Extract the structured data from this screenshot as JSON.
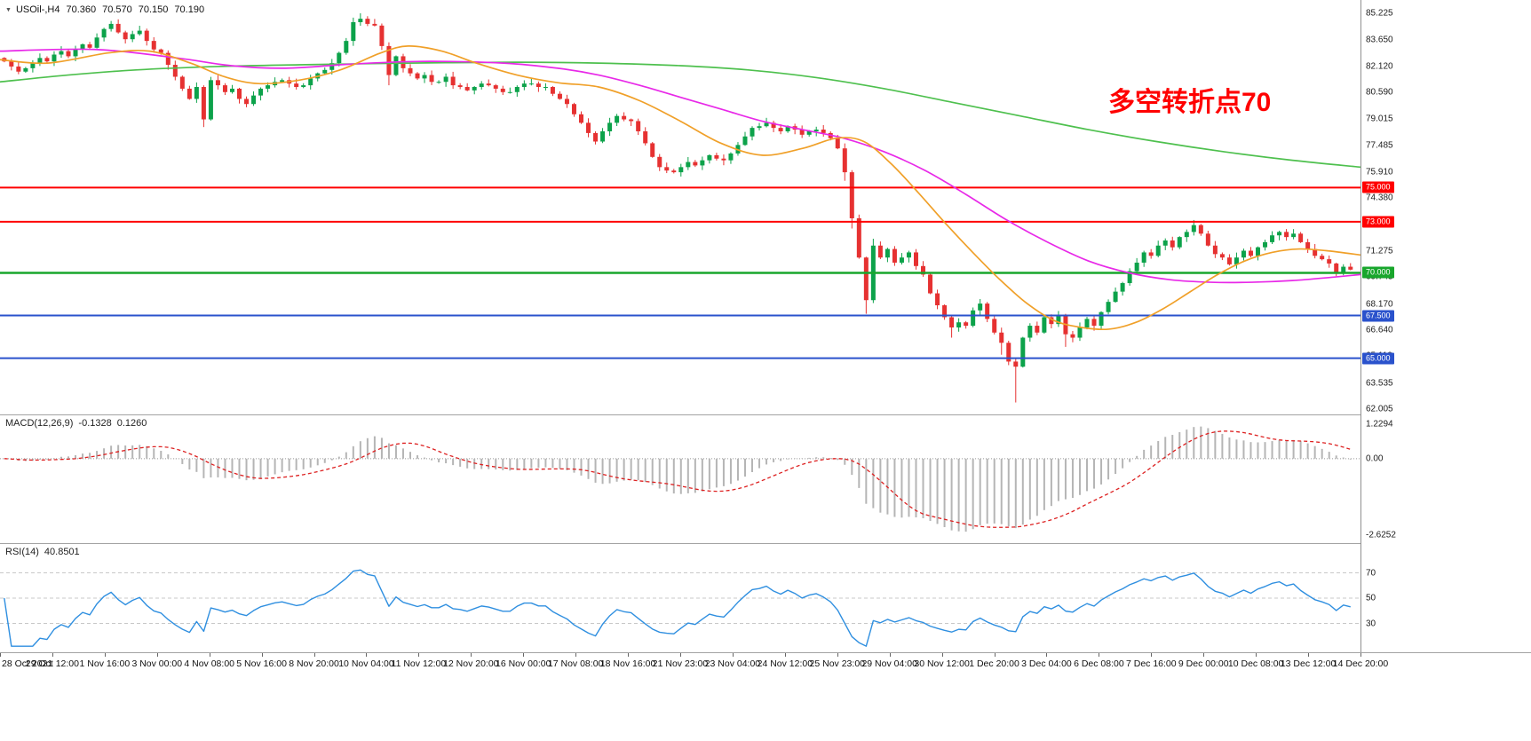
{
  "header": {
    "symbol_period": "USOil-,H4",
    "open": "70.360",
    "high": "70.570",
    "low": "70.150",
    "close": "70.190"
  },
  "annotation": {
    "text": "多空转折点70",
    "color": "#ff0000"
  },
  "colors": {
    "up": "#0ca24a",
    "down": "#e63131",
    "ma_green": "#4ec04e",
    "ma_magenta": "#e829e8",
    "ma_orange": "#f0a029",
    "separator": "#a3a3a3",
    "axis_text": "#1c1c1c"
  },
  "price_axis": {
    "labels": [
      "85.225",
      "83.650",
      "82.120",
      "80.590",
      "79.015",
      "77.485",
      "75.910",
      "74.380",
      "72.850",
      "71.275",
      "69.745",
      "68.170",
      "66.640",
      "65.110",
      "63.535",
      "62.005"
    ]
  },
  "hlines": [
    {
      "price": 75.0,
      "label": "75.000",
      "color": "#ff0000"
    },
    {
      "price": 73.0,
      "label": "73.000",
      "color": "#ff0000"
    },
    {
      "price": 70.0,
      "label": "70.000",
      "color": "#18a62c"
    },
    {
      "price": 67.5,
      "label": "67.500",
      "color": "#2a52cc"
    },
    {
      "price": 65.0,
      "label": "65.000",
      "color": "#2a52cc"
    }
  ],
  "time_axis": {
    "labels": [
      "28 Oct 2021",
      "29 Oct 12:00",
      "1 Nov 16:00",
      "3 Nov 00:00",
      "4 Nov 08:00",
      "5 Nov 16:00",
      "8 Nov 20:00",
      "10 Nov 04:00",
      "11 Nov 12:00",
      "12 Nov 20:00",
      "16 Nov 00:00",
      "17 Nov 08:00",
      "18 Nov 16:00",
      "21 Nov 23:00",
      "23 Nov 04:00",
      "24 Nov 12:00",
      "25 Nov 23:00",
      "29 Nov 04:00",
      "30 Nov 12:00",
      "1 Dec 20:00",
      "3 Dec 04:00",
      "6 Dec 08:00",
      "7 Dec 16:00",
      "9 Dec 00:00",
      "10 Dec 08:00",
      "13 Dec 12:00",
      "14 Dec 20:00"
    ]
  },
  "macd": {
    "name": "MACD(12,26,9)",
    "value_main": "-0.1328",
    "value_signal": "0.1260",
    "axis_max": "1.2294",
    "axis_zero": "0.00",
    "axis_min": "-2.6252",
    "histogram_color": "#b5b5b5",
    "signal_color": "#dd2020"
  },
  "rsi": {
    "name": "RSI(14)",
    "value": "40.8501",
    "levels": [
      70,
      50,
      30
    ],
    "line_color": "#2f8fe0"
  },
  "chart_data": [
    {
      "type": "candlestick",
      "symbol": "USOil",
      "timeframe": "H4",
      "title": "USOil-,H4 70.360 70.570 70.150 70.190",
      "ylim": [
        61.7,
        86.0
      ],
      "first_open": 82.6,
      "closes": [
        82.4,
        82.1,
        81.8,
        82.0,
        82.3,
        82.6,
        82.4,
        82.8,
        83.0,
        82.7,
        83.1,
        83.4,
        83.2,
        83.8,
        84.3,
        84.6,
        84.1,
        83.7,
        84.0,
        84.2,
        83.6,
        83.1,
        82.9,
        82.2,
        81.5,
        80.8,
        80.2,
        80.9,
        79.0,
        81.3,
        81.0,
        80.6,
        80.8,
        80.2,
        79.9,
        80.4,
        80.8,
        81.0,
        81.2,
        81.3,
        81.1,
        80.9,
        81.0,
        81.4,
        81.7,
        81.9,
        82.3,
        82.9,
        83.6,
        84.7,
        84.9,
        84.6,
        84.5,
        83.3,
        81.6,
        82.7,
        82.0,
        81.7,
        81.4,
        81.6,
        81.2,
        81.2,
        81.5,
        81.0,
        80.9,
        80.7,
        80.9,
        81.1,
        81.0,
        80.8,
        80.6,
        80.6,
        80.9,
        81.1,
        81.1,
        80.9,
        80.9,
        80.5,
        80.2,
        79.9,
        79.3,
        78.8,
        78.2,
        77.7,
        78.3,
        78.8,
        79.2,
        79.0,
        78.9,
        78.3,
        77.6,
        76.8,
        76.2,
        76.0,
        75.9,
        76.2,
        76.5,
        76.3,
        76.6,
        76.9,
        76.7,
        76.6,
        77.0,
        77.5,
        78.0,
        78.5,
        78.6,
        78.8,
        78.5,
        78.3,
        78.6,
        78.4,
        78.1,
        78.3,
        78.4,
        78.2,
        77.9,
        77.3,
        75.9,
        73.2,
        70.9,
        68.4,
        71.6,
        70.9,
        71.4,
        70.6,
        70.9,
        71.2,
        70.4,
        69.9,
        68.8,
        68.1,
        67.4,
        66.8,
        67.1,
        66.9,
        67.8,
        68.2,
        67.3,
        66.5,
        65.9,
        64.8,
        64.5,
        66.2,
        66.9,
        66.5,
        67.4,
        67.0,
        67.5,
        66.4,
        66.2,
        66.8,
        67.3,
        66.9,
        67.7,
        68.3,
        68.9,
        69.4,
        70.1,
        70.6,
        71.2,
        71.0,
        71.6,
        71.9,
        71.5,
        72.1,
        72.4,
        72.8,
        72.3,
        71.6,
        71.1,
        70.9,
        70.5,
        70.9,
        71.3,
        71.0,
        71.5,
        71.8,
        72.2,
        72.4,
        72.1,
        72.3,
        71.8,
        71.4,
        71.0,
        70.8,
        70.55,
        69.95,
        70.36,
        70.19
      ],
      "wick_overrides": {
        "28": {
          "low": 78.55
        },
        "50": {
          "high": 85.22
        },
        "51": {
          "high": 85.05
        },
        "54": {
          "low": 81.0
        },
        "118": {
          "low": 75.4
        },
        "119": {
          "low": 72.6
        },
        "121": {
          "low": 67.6
        },
        "122": {
          "high": 72.0
        },
        "133": {
          "low": 66.2
        },
        "140": {
          "low": 65.2
        },
        "142": {
          "low": 62.4
        },
        "149": {
          "low": 65.66
        },
        "167": {
          "high": 73.1
        },
        "187": {
          "low": 69.8
        },
        "189": {
          "high": 70.57,
          "low": 70.15
        }
      },
      "moving_averages": [
        {
          "name": "ma-long",
          "color": "#4ec04e",
          "points": [
            [
              0.0,
              81.2
            ],
            [
              0.05,
              81.6
            ],
            [
              0.1,
              81.9
            ],
            [
              0.16,
              82.1
            ],
            [
              0.22,
              82.2
            ],
            [
              0.3,
              82.3
            ],
            [
              0.38,
              82.35
            ],
            [
              0.44,
              82.3
            ],
            [
              0.5,
              82.15
            ],
            [
              0.55,
              81.9
            ],
            [
              0.6,
              81.45
            ],
            [
              0.65,
              80.8
            ],
            [
              0.7,
              80.0
            ],
            [
              0.75,
              79.2
            ],
            [
              0.8,
              78.4
            ],
            [
              0.85,
              77.7
            ],
            [
              0.9,
              77.1
            ],
            [
              0.95,
              76.6
            ],
            [
              1.0,
              76.2
            ]
          ]
        },
        {
          "name": "ma-medium",
          "color": "#e829e8",
          "points": [
            [
              0.0,
              83.0
            ],
            [
              0.07,
              83.1
            ],
            [
              0.13,
              82.6
            ],
            [
              0.17,
              82.15
            ],
            [
              0.21,
              82.0
            ],
            [
              0.26,
              82.25
            ],
            [
              0.31,
              82.4
            ],
            [
              0.37,
              82.3
            ],
            [
              0.41,
              82.0
            ],
            [
              0.44,
              81.6
            ],
            [
              0.47,
              81.0
            ],
            [
              0.5,
              80.3
            ],
            [
              0.53,
              79.6
            ],
            [
              0.56,
              78.9
            ],
            [
              0.59,
              78.4
            ],
            [
              0.62,
              77.9
            ],
            [
              0.65,
              77.1
            ],
            [
              0.68,
              76.0
            ],
            [
              0.71,
              74.6
            ],
            [
              0.74,
              73.1
            ],
            [
              0.77,
              71.8
            ],
            [
              0.8,
              70.7
            ],
            [
              0.83,
              70.0
            ],
            [
              0.86,
              69.6
            ],
            [
              0.89,
              69.45
            ],
            [
              0.92,
              69.45
            ],
            [
              0.95,
              69.55
            ],
            [
              0.98,
              69.75
            ],
            [
              1.0,
              69.9
            ]
          ]
        },
        {
          "name": "ma-fast",
          "color": "#f0a029",
          "points": [
            [
              0.0,
              82.5
            ],
            [
              0.035,
              82.3
            ],
            [
              0.08,
              82.9
            ],
            [
              0.11,
              83.0
            ],
            [
              0.14,
              82.3
            ],
            [
              0.165,
              81.5
            ],
            [
              0.19,
              81.1
            ],
            [
              0.22,
              81.3
            ],
            [
              0.25,
              81.9
            ],
            [
              0.28,
              82.9
            ],
            [
              0.3,
              83.3
            ],
            [
              0.325,
              83.0
            ],
            [
              0.35,
              82.3
            ],
            [
              0.38,
              81.6
            ],
            [
              0.41,
              81.15
            ],
            [
              0.44,
              80.9
            ],
            [
              0.47,
              80.1
            ],
            [
              0.5,
              78.9
            ],
            [
              0.53,
              77.6
            ],
            [
              0.56,
              76.9
            ],
            [
              0.59,
              77.3
            ],
            [
              0.615,
              77.9
            ],
            [
              0.635,
              77.7
            ],
            [
              0.655,
              76.4
            ],
            [
              0.675,
              74.7
            ],
            [
              0.695,
              72.9
            ],
            [
              0.715,
              71.2
            ],
            [
              0.735,
              69.6
            ],
            [
              0.755,
              68.2
            ],
            [
              0.775,
              67.2
            ],
            [
              0.795,
              66.8
            ],
            [
              0.815,
              66.7
            ],
            [
              0.835,
              67.1
            ],
            [
              0.855,
              67.9
            ],
            [
              0.875,
              68.9
            ],
            [
              0.895,
              69.9
            ],
            [
              0.915,
              70.7
            ],
            [
              0.935,
              71.2
            ],
            [
              0.955,
              71.4
            ],
            [
              0.975,
              71.3
            ],
            [
              1.0,
              71.05
            ]
          ]
        }
      ]
    },
    {
      "type": "bar",
      "name": "MACD(12,26,9) histogram with signal line",
      "derived_from": "candlestick closes (EMA12 - EMA26, signal SMA9)",
      "params": [
        12,
        26,
        9
      ],
      "current": {
        "macd": -0.1328,
        "signal": 0.126
      },
      "range": [
        -2.6252,
        1.2294
      ]
    },
    {
      "type": "line",
      "name": "RSI(14)",
      "derived_from": "candlestick closes (Wilder RSI period 14)",
      "period": 14,
      "current": 40.8501,
      "range": [
        0,
        100
      ],
      "levels": [
        70,
        50,
        30
      ]
    }
  ]
}
